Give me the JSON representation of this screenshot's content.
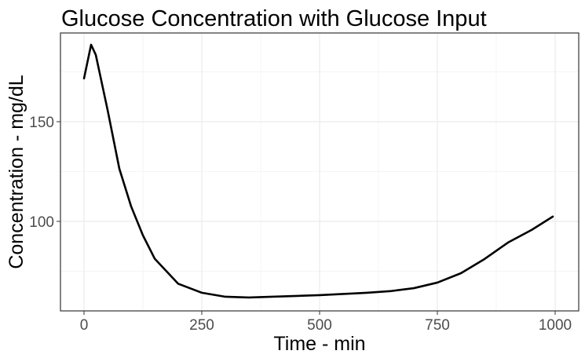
{
  "chart_data": {
    "type": "line",
    "title": "Glucose Concentration with Glucose Input",
    "x_label": "Time - min",
    "y_label": "Concentration - mg/dL",
    "series": [
      {
        "color": "#000000",
        "x": [
          0,
          15,
          25,
          50,
          75,
          100,
          125,
          150,
          200,
          250,
          300,
          350,
          400,
          500,
          600,
          650,
          700,
          750,
          800,
          850,
          900,
          950,
          995
        ],
        "values": [
          171.7,
          188.6,
          183.5,
          155.9,
          126.4,
          107.5,
          93,
          81.3,
          68.7,
          64.2,
          62.2,
          61.8,
          62.2,
          63,
          64.2,
          65,
          66.5,
          69.3,
          74,
          81.1,
          89.4,
          95.7,
          102.4
        ]
      }
    ],
    "xlim": [
      -50,
      1050
    ],
    "ylim": [
      55.1,
      194.5
    ],
    "xticks": [
      0,
      250,
      500,
      750,
      1000
    ],
    "yticks": [
      100,
      150
    ],
    "x_minor_ticks": [
      125,
      375,
      625,
      875
    ],
    "y_minor_ticks": [
      75,
      125,
      175
    ],
    "grid": true
  }
}
